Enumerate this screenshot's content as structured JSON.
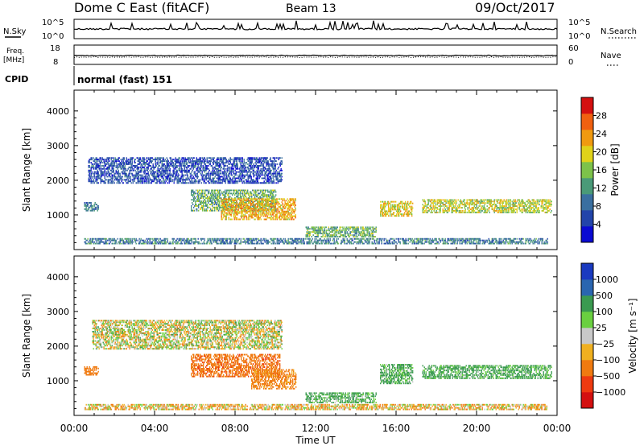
{
  "header": {
    "station": "Dome C East (fitACF)",
    "beam": "Beam 13",
    "date": "09/Oct/2017"
  },
  "sky_panel": {
    "left_label": "N.Sky",
    "left_top": "10^5",
    "left_bottom": "10^0",
    "right_label": "N.Search",
    "right_top": "10^5",
    "right_bottom": "10^0"
  },
  "freq_panel": {
    "left_label_line1": "Freq.",
    "left_label_line2": "[MHz]",
    "left_top": "18",
    "left_bottom": "8",
    "right_label": "Nave",
    "right_top": "60",
    "right_bottom": "0"
  },
  "cpid_panel": {
    "label": "CPID",
    "value": "normal (fast) 151"
  },
  "colors": {
    "power_scale": [
      "#0a0ad2",
      "#2244aa",
      "#3a6fa0",
      "#4a9a78",
      "#7dc24a",
      "#e0d21a",
      "#f09a10",
      "#f06010",
      "#d41010"
    ],
    "velocity_scale": [
      "#d41010",
      "#ee3a10",
      "#f07a10",
      "#f0b020",
      "#c8c8c8",
      "#6ad040",
      "#3a9a50",
      "#2a66b0",
      "#1a3ac0"
    ]
  },
  "chart_data": [
    {
      "type": "heatmap",
      "name": "power",
      "ylabel": "Slant Range [km]",
      "yticks": [
        "1000",
        "2000",
        "3000",
        "4000"
      ],
      "ylim": [
        0,
        4600
      ],
      "xlim": [
        0,
        24
      ],
      "colorbar_label": "Power [dB]",
      "colorbar_ticks": [
        "4",
        "8",
        "12",
        "16",
        "20",
        "24",
        "28"
      ],
      "colorbar_range": [
        0,
        32
      ],
      "echo_regions": [
        {
          "t0": 0.7,
          "t1": 10.3,
          "r0": 1900,
          "r1": 2650,
          "value": 6
        },
        {
          "t0": 0.5,
          "t1": 1.2,
          "r0": 1100,
          "r1": 1350,
          "value": 9
        },
        {
          "t0": 5.8,
          "t1": 10.0,
          "r0": 1100,
          "r1": 1700,
          "value": 14
        },
        {
          "t0": 7.3,
          "t1": 11.0,
          "r0": 850,
          "r1": 1450,
          "value": 22
        },
        {
          "t0": 15.2,
          "t1": 16.8,
          "r0": 950,
          "r1": 1400,
          "value": 20
        },
        {
          "t0": 17.3,
          "t1": 23.7,
          "r0": 1050,
          "r1": 1450,
          "value": 18
        },
        {
          "t0": 11.5,
          "t1": 15.0,
          "r0": 350,
          "r1": 650,
          "value": 14
        },
        {
          "t0": 0.5,
          "t1": 23.5,
          "r0": 150,
          "r1": 300,
          "value": 10
        }
      ]
    },
    {
      "type": "heatmap",
      "name": "velocity",
      "ylabel": "Slant Range [km]",
      "yticks": [
        "1000",
        "2000",
        "3000",
        "4000"
      ],
      "ylim": [
        0,
        4600
      ],
      "xlim": [
        0,
        24
      ],
      "xticks": [
        "00:00",
        "04:00",
        "08:00",
        "12:00",
        "16:00",
        "20:00",
        "00:00"
      ],
      "xlabel": "Time UT",
      "colorbar_label": "Velocity [m s⁻¹]",
      "colorbar_ticks": [
        "1000",
        "500",
        "100",
        "25",
        "−25",
        "−100",
        "−500",
        "−1000"
      ],
      "echo_regions": [
        {
          "t0": 0.9,
          "t1": 10.3,
          "r0": 1900,
          "r1": 2750,
          "value": 0
        },
        {
          "t0": 0.5,
          "t1": 1.2,
          "r0": 1150,
          "r1": 1400,
          "value": -300
        },
        {
          "t0": 5.8,
          "t1": 10.2,
          "r0": 1100,
          "r1": 1750,
          "value": -400
        },
        {
          "t0": 8.8,
          "t1": 11.0,
          "r0": 750,
          "r1": 1300,
          "value": -200
        },
        {
          "t0": 15.2,
          "t1": 16.8,
          "r0": 900,
          "r1": 1450,
          "value": 150
        },
        {
          "t0": 17.3,
          "t1": 23.7,
          "r0": 1050,
          "r1": 1450,
          "value": 150
        },
        {
          "t0": 11.5,
          "t1": 15.0,
          "r0": 350,
          "r1": 650,
          "value": 150
        },
        {
          "t0": 0.5,
          "t1": 23.5,
          "r0": 150,
          "r1": 300,
          "value": -60
        }
      ]
    }
  ]
}
